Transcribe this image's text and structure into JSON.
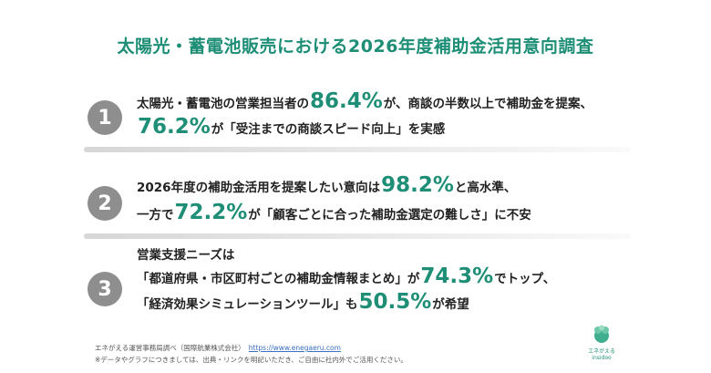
{
  "title": "太陽光・蓄電池販売における2026年度補助金活用意向調査",
  "items": [
    {
      "number": "1",
      "l1a": "太陽光・蓄電池の営業担当者の",
      "l1b": "86.4%",
      "l1c": "が、商談の半数以上で補助金を提案、",
      "l2a": "76.2%",
      "l2b": "が「受注までの商談スピード向上」を実感"
    },
    {
      "number": "2",
      "l1a": "2026年度の補助金活用を提案したい意向は",
      "l1b": "98.2%",
      "l1c": "と高水準、",
      "l2a": "一方で",
      "l2b": "72.2%",
      "l2c": "が「顧客ごとに合った補助金選定の難しさ」に不安"
    },
    {
      "number": "3",
      "l1": "営業支援ニーズは",
      "l2a": "「都道府県・市区町村ごとの補助金情報まとめ」が",
      "l2b": "74.3%",
      "l2c": "でトップ、",
      "l3a": "「経済効果シミュレーションツール」も",
      "l3b": "50.5%",
      "l3c": "が希望"
    }
  ],
  "footer": {
    "source": "エネがえる運営事務局調べ（国際航業株式会社）",
    "url": "https://www.enegaeru.com",
    "note": "※データやグラフにつきましては、出典・リンクを明記いただき、ご自由に社内外でご活用ください。"
  },
  "logo": {
    "name": "エネがえる",
    "sub": "insidoo"
  },
  "colors": {
    "accent": "#1e8e76",
    "badge": "#8e8e8e"
  }
}
